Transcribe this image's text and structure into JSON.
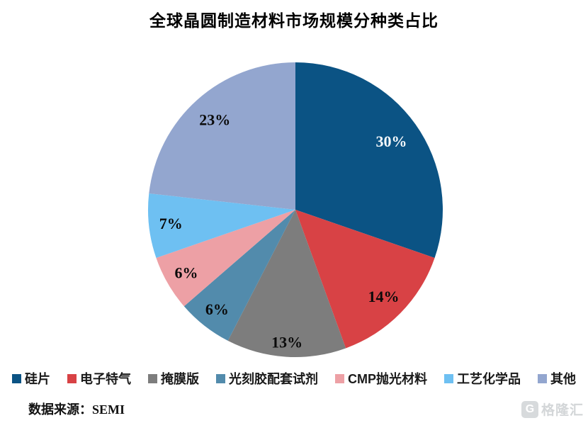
{
  "title": "全球晶圆制造材料市场规模分种类占比",
  "source": "数据来源：SEMI",
  "watermark": {
    "icon": "gelonghui-logo",
    "text": "格隆汇"
  },
  "chart_data": {
    "type": "pie",
    "title": "全球晶圆制造材料市场规模分种类占比",
    "categories": [
      "硅片",
      "电子特气",
      "掩膜版",
      "光刻胶配套试剂",
      "CMP抛光材料",
      "工艺化学品",
      "其他"
    ],
    "values": [
      30,
      14,
      13,
      6,
      6,
      7,
      23
    ],
    "unit": "%",
    "labels": [
      "30%",
      "14%",
      "13%",
      "6%",
      "6%",
      "7%",
      "23%"
    ],
    "colors": [
      "#0B5384",
      "#D84245",
      "#7D7D7D",
      "#528BAC",
      "#EDA0A5",
      "#6EC0F2",
      "#93A6CF"
    ],
    "label_colors": [
      "#F4F8FB",
      "#0A0A0A",
      "#0A0A0A",
      "#0A0A0A",
      "#0A0A0A",
      "#0A0A0A",
      "#0A0A0A"
    ],
    "label_radius_frac": [
      0.8,
      0.84,
      0.9,
      0.86,
      0.855,
      0.85,
      0.82
    ],
    "start_angle_deg": 0,
    "direction": "clockwise",
    "legend_position": "bottom",
    "grid": false
  }
}
